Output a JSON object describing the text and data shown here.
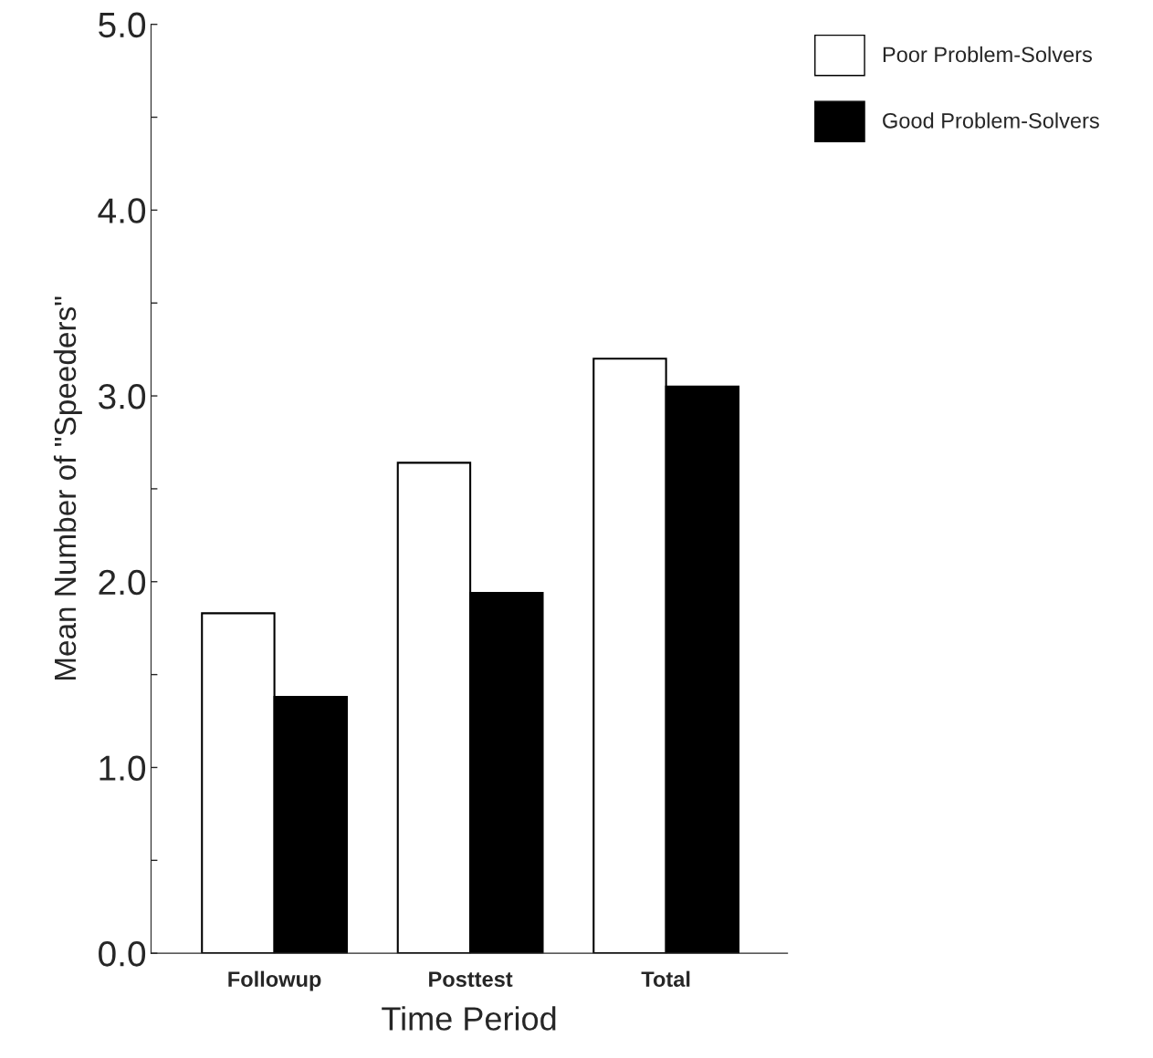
{
  "chart_data": {
    "type": "bar",
    "xlabel": "Time Period",
    "ylabel": "Mean Number of \"Speeders\"",
    "categories": [
      "Followup",
      "Posttest",
      "Total"
    ],
    "series": [
      {
        "name": "Poor Problem-Solvers",
        "color": "#ffffff",
        "values": [
          1.83,
          2.64,
          3.2
        ]
      },
      {
        "name": "Good Problem-Solvers",
        "color": "#000000",
        "values": [
          1.38,
          1.94,
          3.05
        ]
      }
    ],
    "ylim": [
      0,
      5
    ],
    "yticks": [
      {
        "value": 0,
        "label": "0.0"
      },
      {
        "value": 0.5,
        "label": null
      },
      {
        "value": 1,
        "label": "1.0"
      },
      {
        "value": 1.5,
        "label": null
      },
      {
        "value": 2,
        "label": "2.0"
      },
      {
        "value": 2.5,
        "label": null
      },
      {
        "value": 3,
        "label": "3.0"
      },
      {
        "value": 3.5,
        "label": null
      },
      {
        "value": 4,
        "label": "4.0"
      },
      {
        "value": 4.5,
        "label": null
      },
      {
        "value": 5,
        "label": "5.0"
      }
    ],
    "legend": "top right",
    "grid": false
  }
}
